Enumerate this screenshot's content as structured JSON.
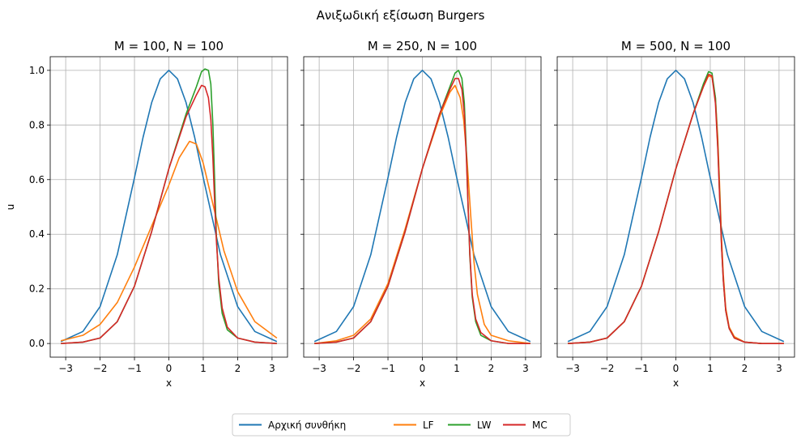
{
  "figure": {
    "suptitle": "Ανιξωδική εξίσωση Burgers"
  },
  "chart_data": {
    "type": "line",
    "shared_y_label": "u",
    "xlim": [
      -3.45,
      3.45
    ],
    "ylim": [
      -0.05,
      1.05
    ],
    "x_ticks": [
      -3,
      -2,
      -1,
      0,
      1,
      2,
      3
    ],
    "y_ticks": [
      0.0,
      0.2,
      0.4,
      0.6,
      0.8,
      1.0
    ],
    "y_tick_labels": [
      "0.0",
      "0.2",
      "0.4",
      "0.6",
      "0.8",
      "1.0"
    ],
    "grid": true,
    "legend_placement": "bottom-center",
    "legend": [
      {
        "name": "Αρχική συνθήκη",
        "color": "#1f77b4"
      },
      {
        "name": "LF",
        "color": "#ff7f0e"
      },
      {
        "name": "LW",
        "color": "#2ca02c"
      },
      {
        "name": "MC",
        "color": "#d62728"
      }
    ],
    "panels": [
      {
        "title": "M = 100, N = 100",
        "xlabel": "x",
        "series": [
          {
            "name": "Αρχική συνθήκη",
            "color": "#1f77b4",
            "x": [
              -3.14,
              -2.5,
              -2.0,
              -1.5,
              -1.0,
              -0.75,
              -0.5,
              -0.25,
              0.0,
              0.25,
              0.5,
              0.75,
              1.0,
              1.5,
              2.0,
              2.5,
              3.14
            ],
            "y": [
              0.007,
              0.044,
              0.135,
              0.325,
              0.607,
              0.755,
              0.882,
              0.969,
              1.0,
              0.969,
              0.882,
              0.755,
              0.607,
              0.325,
              0.135,
              0.044,
              0.007
            ]
          },
          {
            "name": "LF",
            "color": "#ff7f0e",
            "x": [
              -3.14,
              -2.5,
              -2.0,
              -1.5,
              -1.0,
              -0.5,
              0.0,
              0.3,
              0.6,
              0.8,
              1.0,
              1.3,
              1.6,
              2.0,
              2.5,
              3.14
            ],
            "y": [
              0.01,
              0.03,
              0.07,
              0.15,
              0.28,
              0.43,
              0.58,
              0.68,
              0.74,
              0.73,
              0.66,
              0.5,
              0.34,
              0.19,
              0.08,
              0.02
            ]
          },
          {
            "name": "LW",
            "color": "#2ca02c",
            "x": [
              -3.14,
              -2.5,
              -2.0,
              -1.5,
              -1.0,
              -0.5,
              0.0,
              0.5,
              0.8,
              0.95,
              1.05,
              1.15,
              1.22,
              1.28,
              1.33,
              1.38,
              1.45,
              1.55,
              1.7,
              2.0,
              2.5,
              3.14
            ],
            "y": [
              0.0,
              0.005,
              0.02,
              0.08,
              0.21,
              0.41,
              0.64,
              0.84,
              0.94,
              0.995,
              1.005,
              1.0,
              0.95,
              0.8,
              0.6,
              0.4,
              0.22,
              0.11,
              0.05,
              0.02,
              0.005,
              0.0
            ]
          },
          {
            "name": "MC",
            "color": "#d62728",
            "x": [
              -3.14,
              -2.5,
              -2.0,
              -1.5,
              -1.0,
              -0.5,
              0.0,
              0.5,
              0.8,
              0.95,
              1.05,
              1.15,
              1.22,
              1.28,
              1.33,
              1.38,
              1.45,
              1.55,
              1.7,
              2.0,
              2.5,
              3.14
            ],
            "y": [
              0.0,
              0.005,
              0.02,
              0.08,
              0.21,
              0.41,
              0.64,
              0.83,
              0.91,
              0.945,
              0.94,
              0.9,
              0.82,
              0.68,
              0.52,
              0.38,
              0.24,
              0.13,
              0.06,
              0.02,
              0.005,
              0.0
            ]
          }
        ]
      },
      {
        "title": "M = 250, N = 100",
        "xlabel": "x",
        "series": [
          {
            "name": "Αρχική συνθήκη",
            "color": "#1f77b4",
            "x": [
              -3.14,
              -2.5,
              -2.0,
              -1.5,
              -1.0,
              -0.75,
              -0.5,
              -0.25,
              0.0,
              0.25,
              0.5,
              0.75,
              1.0,
              1.5,
              2.0,
              2.5,
              3.14
            ],
            "y": [
              0.007,
              0.044,
              0.135,
              0.325,
              0.607,
              0.755,
              0.882,
              0.969,
              1.0,
              0.969,
              0.882,
              0.755,
              0.607,
              0.325,
              0.135,
              0.044,
              0.007
            ]
          },
          {
            "name": "LF",
            "color": "#ff7f0e",
            "x": [
              -3.14,
              -2.5,
              -2.0,
              -1.5,
              -1.0,
              -0.5,
              0.0,
              0.5,
              0.8,
              0.95,
              1.1,
              1.2,
              1.3,
              1.4,
              1.5,
              1.6,
              1.8,
              2.0,
              2.5,
              3.14
            ],
            "y": [
              0.0,
              0.01,
              0.03,
              0.09,
              0.22,
              0.42,
              0.64,
              0.83,
              0.92,
              0.945,
              0.9,
              0.82,
              0.67,
              0.48,
              0.3,
              0.18,
              0.07,
              0.03,
              0.01,
              0.0
            ]
          },
          {
            "name": "LW",
            "color": "#2ca02c",
            "x": [
              -3.14,
              -2.5,
              -2.0,
              -1.5,
              -1.0,
              -0.5,
              0.0,
              0.5,
              0.8,
              0.95,
              1.05,
              1.15,
              1.22,
              1.28,
              1.33,
              1.38,
              1.45,
              1.55,
              1.7,
              2.0,
              2.5,
              3.14
            ],
            "y": [
              0.0,
              0.005,
              0.02,
              0.08,
              0.21,
              0.41,
              0.64,
              0.84,
              0.94,
              0.99,
              1.0,
              0.97,
              0.88,
              0.7,
              0.5,
              0.32,
              0.17,
              0.08,
              0.03,
              0.01,
              0.0,
              0.0
            ]
          },
          {
            "name": "MC",
            "color": "#d62728",
            "x": [
              -3.14,
              -2.5,
              -2.0,
              -1.5,
              -1.0,
              -0.5,
              0.0,
              0.5,
              0.8,
              0.95,
              1.05,
              1.15,
              1.22,
              1.28,
              1.33,
              1.38,
              1.45,
              1.55,
              1.7,
              2.0,
              2.5,
              3.14
            ],
            "y": [
              0.0,
              0.005,
              0.02,
              0.08,
              0.21,
              0.41,
              0.64,
              0.84,
              0.93,
              0.97,
              0.97,
              0.93,
              0.84,
              0.68,
              0.5,
              0.33,
              0.18,
              0.09,
              0.04,
              0.01,
              0.0,
              0.0
            ]
          }
        ]
      },
      {
        "title": "M = 500, N = 100",
        "xlabel": "x",
        "series": [
          {
            "name": "Αρχική συνθήκη",
            "color": "#1f77b4",
            "x": [
              -3.14,
              -2.5,
              -2.0,
              -1.5,
              -1.0,
              -0.75,
              -0.5,
              -0.25,
              0.0,
              0.25,
              0.5,
              0.75,
              1.0,
              1.5,
              2.0,
              2.5,
              3.14
            ],
            "y": [
              0.007,
              0.044,
              0.135,
              0.325,
              0.607,
              0.755,
              0.882,
              0.969,
              1.0,
              0.969,
              0.882,
              0.755,
              0.607,
              0.325,
              0.135,
              0.044,
              0.007
            ]
          },
          {
            "name": "LF",
            "color": "#ff7f0e",
            "x": [
              -3.14,
              -2.5,
              -2.0,
              -1.5,
              -1.0,
              -0.5,
              0.0,
              0.5,
              0.8,
              0.95,
              1.05,
              1.15,
              1.22,
              1.28,
              1.33,
              1.38,
              1.45,
              1.55,
              1.7,
              2.0,
              2.5,
              3.14
            ],
            "y": [
              0.0,
              0.005,
              0.02,
              0.08,
              0.21,
              0.41,
              0.64,
              0.84,
              0.94,
              0.98,
              0.975,
              0.9,
              0.75,
              0.55,
              0.38,
              0.25,
              0.13,
              0.06,
              0.025,
              0.005,
              0.0,
              0.0
            ]
          },
          {
            "name": "LW",
            "color": "#2ca02c",
            "x": [
              -3.14,
              -2.5,
              -2.0,
              -1.5,
              -1.0,
              -0.5,
              0.0,
              0.5,
              0.8,
              0.95,
              1.05,
              1.15,
              1.22,
              1.28,
              1.33,
              1.38,
              1.45,
              1.55,
              1.7,
              2.0,
              2.5,
              3.14
            ],
            "y": [
              0.0,
              0.005,
              0.02,
              0.08,
              0.21,
              0.41,
              0.64,
              0.84,
              0.95,
              0.995,
              0.99,
              0.9,
              0.72,
              0.52,
              0.35,
              0.23,
              0.12,
              0.055,
              0.02,
              0.005,
              0.0,
              0.0
            ]
          },
          {
            "name": "MC",
            "color": "#d62728",
            "x": [
              -3.14,
              -2.5,
              -2.0,
              -1.5,
              -1.0,
              -0.5,
              0.0,
              0.5,
              0.8,
              0.95,
              1.05,
              1.15,
              1.22,
              1.28,
              1.33,
              1.38,
              1.45,
              1.55,
              1.7,
              2.0,
              2.5,
              3.14
            ],
            "y": [
              0.0,
              0.005,
              0.02,
              0.08,
              0.21,
              0.41,
              0.64,
              0.84,
              0.94,
              0.985,
              0.98,
              0.88,
              0.71,
              0.51,
              0.35,
              0.23,
              0.12,
              0.055,
              0.02,
              0.005,
              0.0,
              0.0
            ]
          }
        ]
      }
    ]
  }
}
